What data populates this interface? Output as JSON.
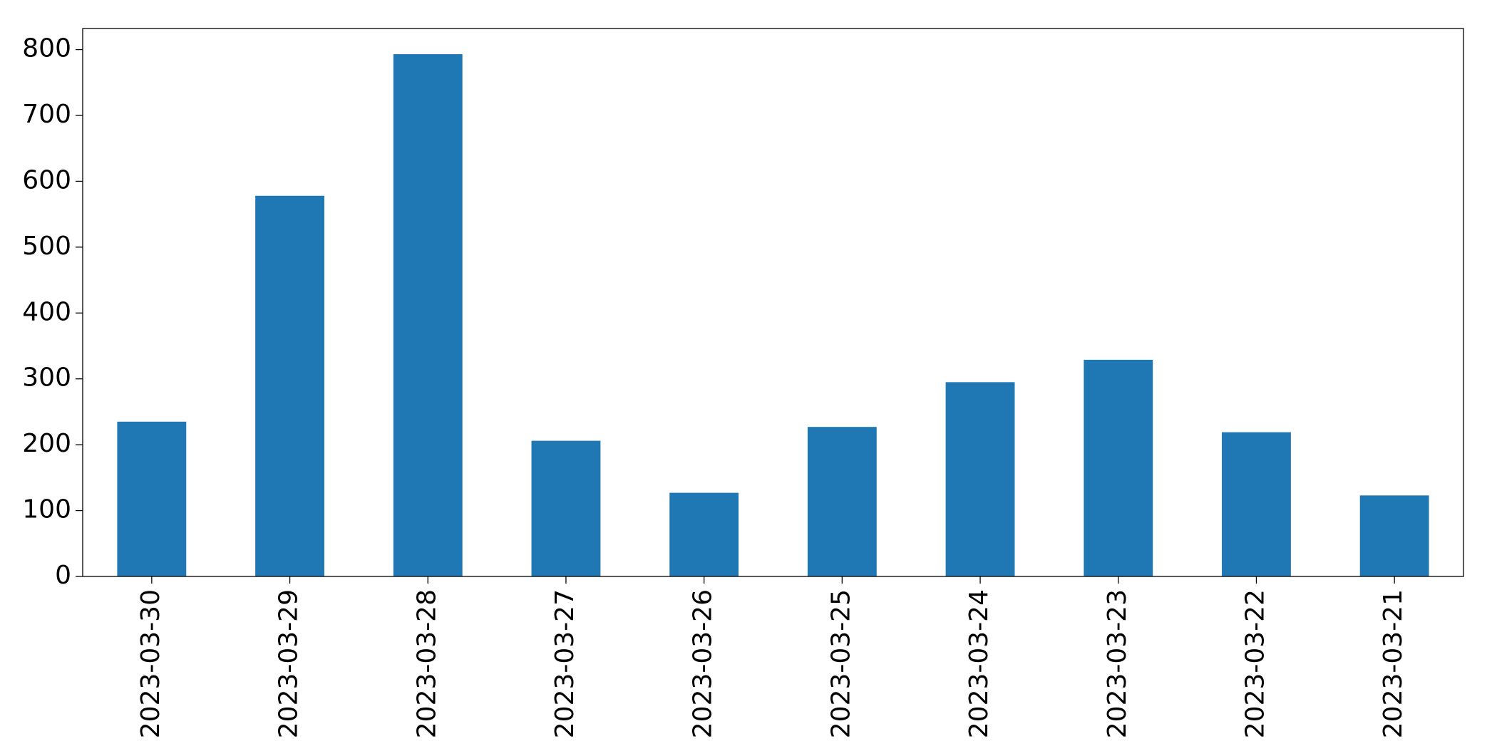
{
  "chart_data": {
    "type": "bar",
    "categories": [
      "2023-03-30",
      "2023-03-29",
      "2023-03-28",
      "2023-03-27",
      "2023-03-26",
      "2023-03-25",
      "2023-03-24",
      "2023-03-23",
      "2023-03-22",
      "2023-03-21"
    ],
    "values": [
      235,
      578,
      793,
      206,
      127,
      227,
      295,
      329,
      219,
      123
    ],
    "color": "#1f77b4",
    "ylim": [
      0,
      832
    ],
    "yticks": [
      0,
      100,
      200,
      300,
      400,
      500,
      600,
      700,
      800
    ],
    "grid": false
  }
}
